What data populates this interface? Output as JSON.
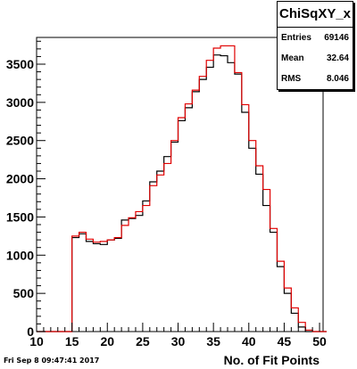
{
  "chart_data": {
    "type": "histogram",
    "title": "",
    "xlabel": "No. of Fit Points",
    "ylabel": "",
    "xlim": [
      10,
      50.5
    ],
    "ylim": [
      0,
      3850
    ],
    "x_ticks": [
      "10",
      "15",
      "20",
      "25",
      "30",
      "35",
      "40",
      "45",
      "50"
    ],
    "y_ticks": [
      "0",
      "500",
      "1000",
      "1500",
      "2000",
      "2500",
      "3000",
      "3500"
    ],
    "bin_width": 1,
    "bin_edges_start": 10,
    "series": [
      {
        "color": "#000000",
        "values": [
          0,
          0,
          0,
          0,
          0,
          1230,
          1280,
          1180,
          1150,
          1140,
          1200,
          1220,
          1460,
          1480,
          1520,
          1710,
          1960,
          2100,
          2290,
          2480,
          2760,
          2930,
          3140,
          3300,
          3460,
          3620,
          3610,
          3520,
          3370,
          2870,
          2400,
          2060,
          1650,
          1300,
          850,
          500,
          240,
          60,
          0,
          0,
          0
        ]
      },
      {
        "color": "#e00000",
        "values": [
          0,
          0,
          0,
          0,
          0,
          1250,
          1300,
          1210,
          1170,
          1180,
          1200,
          1230,
          1390,
          1490,
          1570,
          1650,
          1910,
          2050,
          2200,
          2500,
          2800,
          2980,
          3160,
          3340,
          3550,
          3710,
          3740,
          3740,
          3390,
          2970,
          2500,
          2170,
          1860,
          1350,
          920,
          570,
          310,
          120,
          20,
          0,
          0
        ]
      }
    ],
    "grid": false
  },
  "stats": {
    "title": "ChiSqXY_x",
    "rows": [
      {
        "label": "Entries",
        "value": "69146"
      },
      {
        "label": "Mean",
        "value": "32.64"
      },
      {
        "label": "RMS",
        "value": "8.046"
      }
    ]
  },
  "footer": {
    "date": "Fri Sep  8 09:47:41 2017"
  }
}
